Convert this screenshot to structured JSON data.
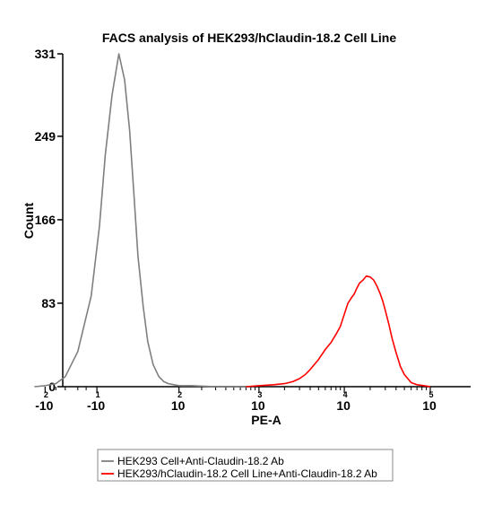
{
  "chart_data": {
    "type": "line",
    "title": "FACS analysis of HEK293/hClaudin-18.2 Cell Line",
    "xlabel": "PE-A",
    "ylabel": "Count",
    "ylim": [
      0,
      331
    ],
    "yticks": [
      "0",
      "83",
      "166",
      "249",
      "331"
    ],
    "xscale": "biexponential",
    "xticks": [
      {
        "base": "-10",
        "exp": "2",
        "value": -100
      },
      {
        "base": "-10",
        "exp": "1",
        "value": -10
      },
      {
        "base": "10",
        "exp": "2",
        "value": 100
      },
      {
        "base": "10",
        "exp": "3",
        "value": 1000
      },
      {
        "base": "10",
        "exp": "4",
        "value": 10000
      },
      {
        "base": "10",
        "exp": "5",
        "value": 100000
      }
    ],
    "legend_position": "bottom-left",
    "series": [
      {
        "name": "HEK293 Cell+Anti-Claudin-18.2 Ab",
        "color": "#7f7f7f",
        "x": [
          -140,
          -100,
          -70,
          -50,
          -30,
          -15,
          -8,
          -4,
          0,
          4,
          8,
          12,
          16,
          20,
          26,
          32,
          40,
          50,
          60,
          70,
          85,
          100,
          150,
          300,
          800
        ],
        "y": [
          0,
          1,
          3,
          10,
          35,
          90,
          160,
          230,
          290,
          331,
          305,
          255,
          190,
          130,
          80,
          45,
          22,
          10,
          5,
          3,
          2,
          1,
          1,
          0,
          0
        ]
      },
      {
        "name": "HEK293/hClaudin-18.2 Cell Line+Anti-Claudin-18.2 Ab",
        "color": "#ff0000",
        "x": [
          700,
          1000,
          1500,
          2000,
          2500,
          3000,
          3500,
          4000,
          5000,
          6000,
          7000,
          8000,
          9000,
          10000,
          11000,
          12000,
          13000,
          14000,
          15000,
          16500,
          18000,
          20000,
          22000,
          24000,
          26000,
          28000,
          30000,
          33000,
          36000,
          40000,
          45000,
          50000,
          60000,
          70000,
          85000,
          100000
        ],
        "y": [
          0,
          1,
          2,
          3,
          5,
          8,
          12,
          17,
          27,
          37,
          44,
          52,
          60,
          72,
          83,
          88,
          92,
          98,
          103,
          106,
          110,
          109,
          106,
          100,
          93,
          85,
          76,
          62,
          48,
          34,
          20,
          12,
          4,
          2,
          1,
          0
        ]
      }
    ]
  }
}
